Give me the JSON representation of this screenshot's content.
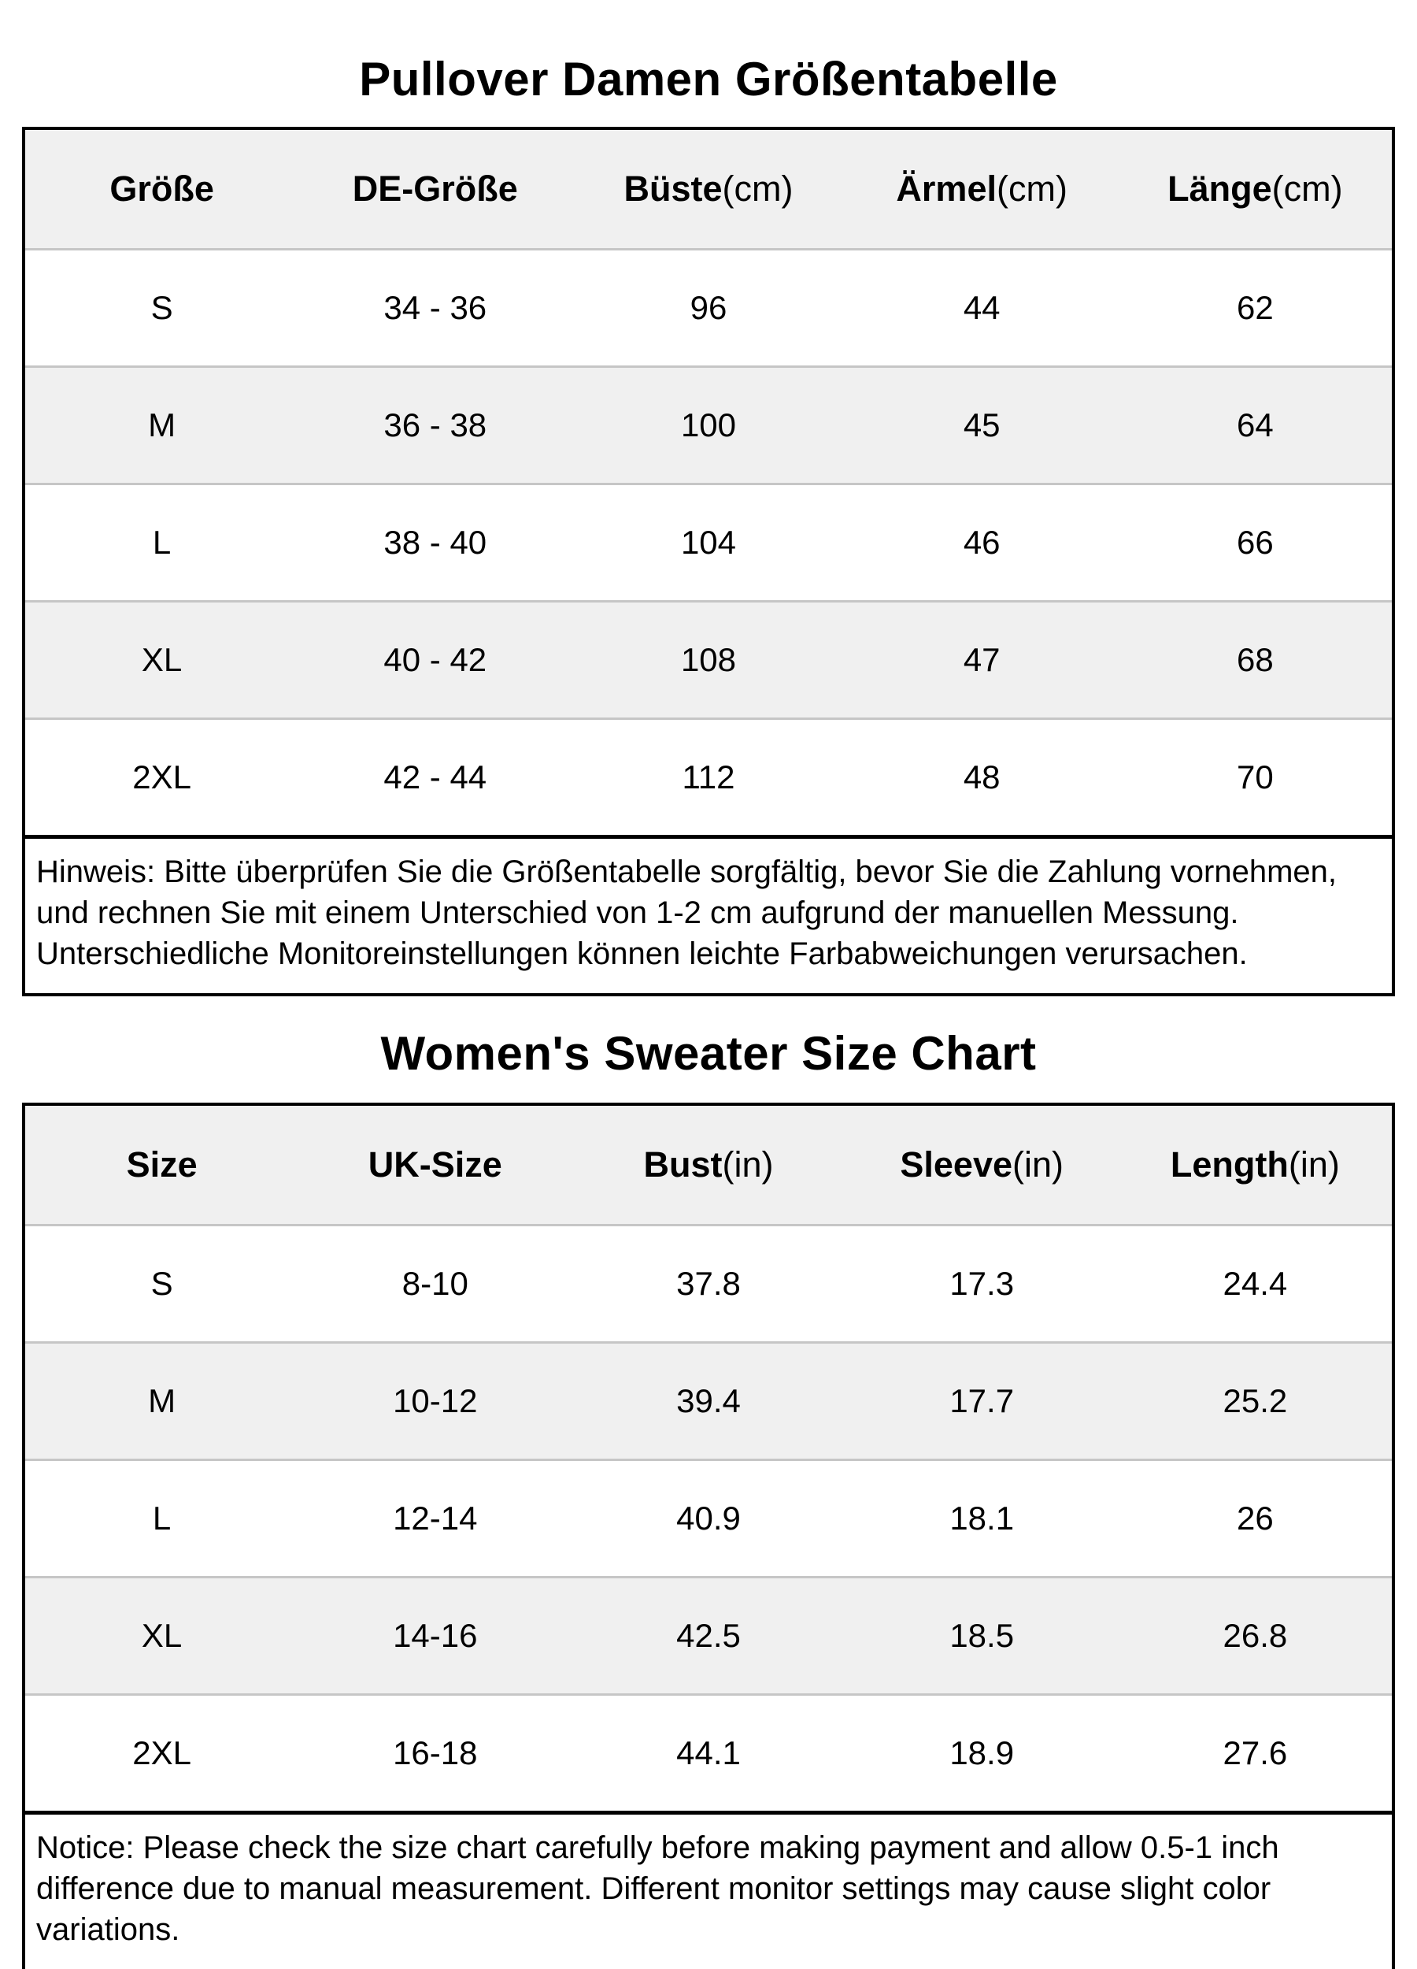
{
  "colors": {
    "background": "#ffffff",
    "text": "#000000",
    "table_border": "#000000",
    "row_alt_background": "#f0f0f0",
    "row_separator": "#c6c6c6"
  },
  "chart_data": [
    {
      "type": "table",
      "title": "Pullover Damen Größentabelle",
      "columns": [
        {
          "label": "Größe",
          "unit": ""
        },
        {
          "label": "DE-Größe",
          "unit": ""
        },
        {
          "label": "Büste",
          "unit": "(cm)"
        },
        {
          "label": "Ärmel",
          "unit": "(cm)"
        },
        {
          "label": "Länge",
          "unit": "(cm)"
        }
      ],
      "rows": [
        [
          "S",
          "34 - 36",
          "96",
          "44",
          "62"
        ],
        [
          "M",
          "36 - 38",
          "100",
          "45",
          "64"
        ],
        [
          "L",
          "38 - 40",
          "104",
          "46",
          "66"
        ],
        [
          "XL",
          "40 - 42",
          "108",
          "47",
          "68"
        ],
        [
          "2XL",
          "42 - 44",
          "112",
          "48",
          "70"
        ]
      ],
      "notice": "Hinweis: Bitte überprüfen Sie die Größentabelle sorgfältig, bevor Sie die Zahlung vornehmen,\nund rechnen Sie mit einem Unterschied von 1-2 cm aufgrund der manuellen Messung.\nUnterschiedliche Monitoreinstellungen können leichte Farbabweichungen verursachen."
    },
    {
      "type": "table",
      "title": "Women's Sweater Size Chart",
      "columns": [
        {
          "label": "Size",
          "unit": ""
        },
        {
          "label": "UK-Size",
          "unit": ""
        },
        {
          "label": "Bust",
          "unit": "(in)"
        },
        {
          "label": "Sleeve",
          "unit": "(in)"
        },
        {
          "label": "Length",
          "unit": "(in)"
        }
      ],
      "rows": [
        [
          "S",
          "8-10",
          "37.8",
          "17.3",
          "24.4"
        ],
        [
          "M",
          "10-12",
          "39.4",
          "17.7",
          "25.2"
        ],
        [
          "L",
          "12-14",
          "40.9",
          "18.1",
          "26"
        ],
        [
          "XL",
          "14-16",
          "42.5",
          "18.5",
          "26.8"
        ],
        [
          "2XL",
          "16-18",
          "44.1",
          "18.9",
          "27.6"
        ]
      ],
      "notice": "Notice: Please check the size chart carefully before making payment and allow 0.5-1 inch\ndifference due to manual measurement. Different monitor settings may cause slight color\nvariations."
    }
  ]
}
